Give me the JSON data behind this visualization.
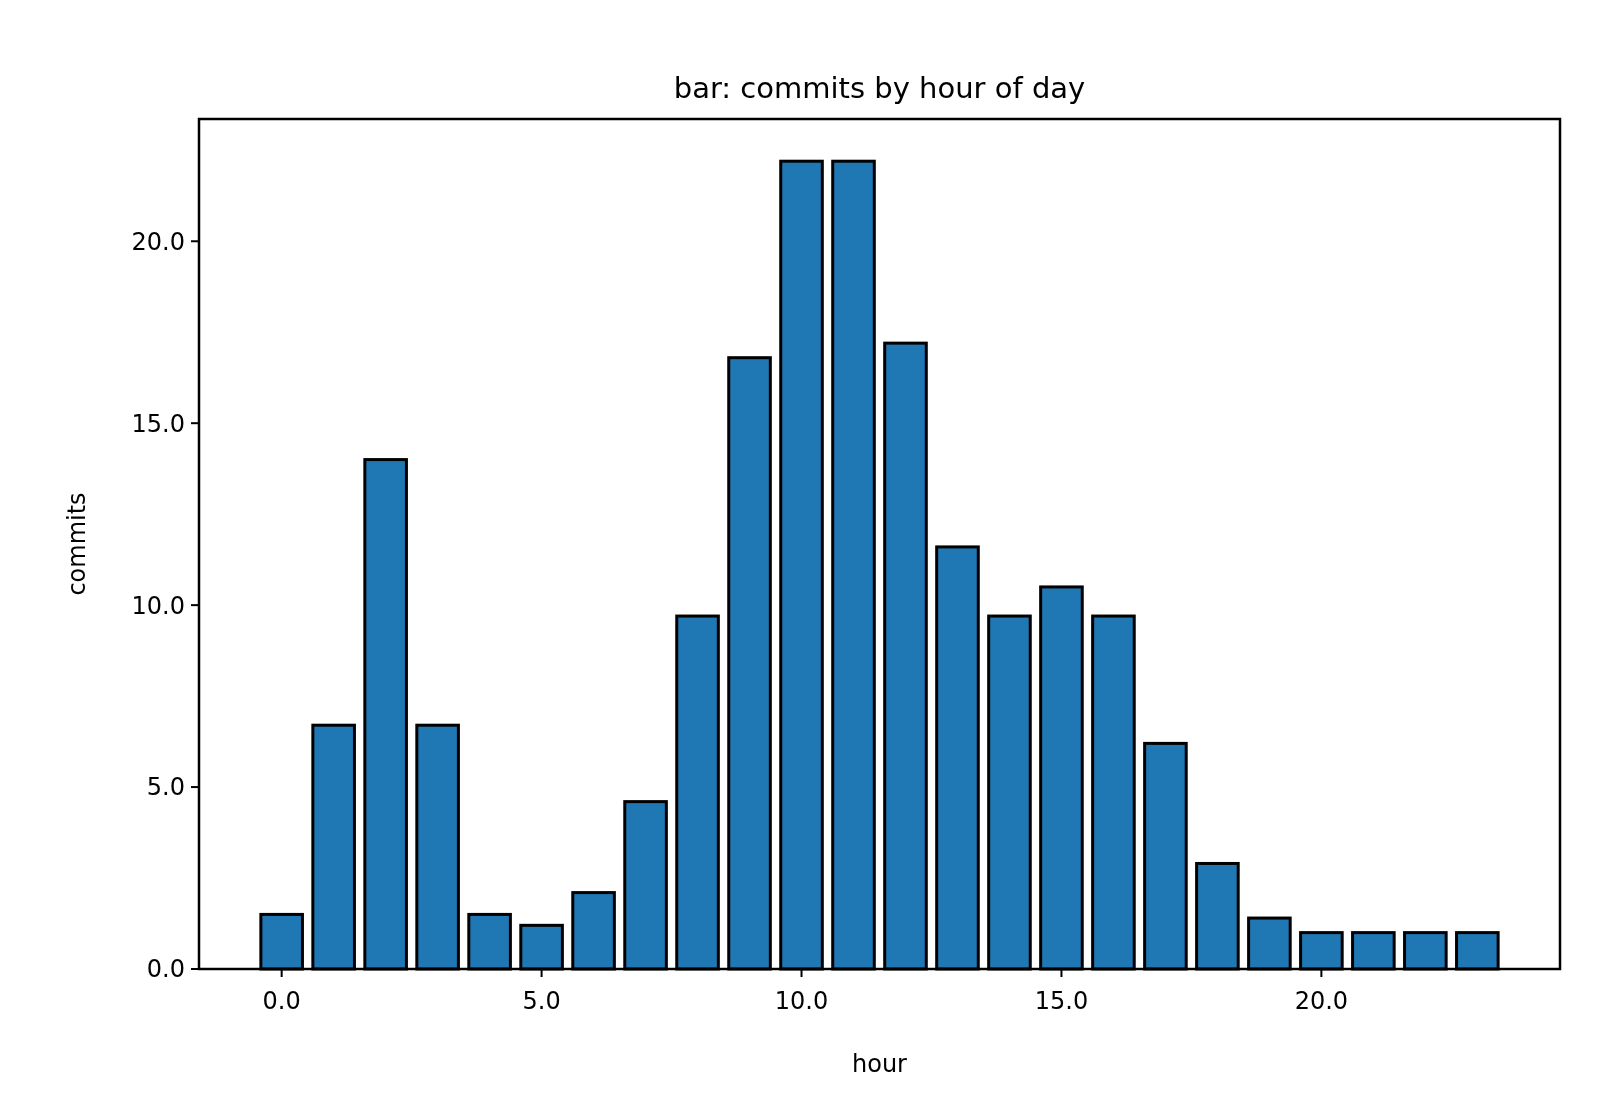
{
  "chart_data": {
    "type": "bar",
    "title": "bar: commits by hour of day",
    "xlabel": "hour",
    "ylabel": "commits",
    "x": [
      0,
      1,
      2,
      3,
      4,
      5,
      6,
      7,
      8,
      9,
      10,
      11,
      12,
      13,
      14,
      15,
      16,
      17,
      18,
      19,
      20,
      21,
      22,
      23
    ],
    "values": [
      1.5,
      6.7,
      14.0,
      6.7,
      1.5,
      1.2,
      2.1,
      4.6,
      9.7,
      16.8,
      22.2,
      22.2,
      17.2,
      11.6,
      9.7,
      10.5,
      9.7,
      6.2,
      2.9,
      1.4,
      1.0,
      1.0,
      1.0,
      1.0
    ],
    "color": "#1f77b4",
    "xlim": [
      -1.59,
      24.59
    ],
    "ylim": [
      0,
      23.36
    ],
    "xticks": [
      {
        "value": 0,
        "label": "0.0"
      },
      {
        "value": 5,
        "label": "5.0"
      },
      {
        "value": 10,
        "label": "10.0"
      },
      {
        "value": 15,
        "label": "15.0"
      },
      {
        "value": 20,
        "label": "20.0"
      }
    ],
    "yticks": [
      {
        "value": 0,
        "label": "0.0"
      },
      {
        "value": 5,
        "label": "5.0"
      },
      {
        "value": 10,
        "label": "10.0"
      },
      {
        "value": 15,
        "label": "15.0"
      },
      {
        "value": 20,
        "label": "20.0"
      }
    ],
    "grid": false
  }
}
